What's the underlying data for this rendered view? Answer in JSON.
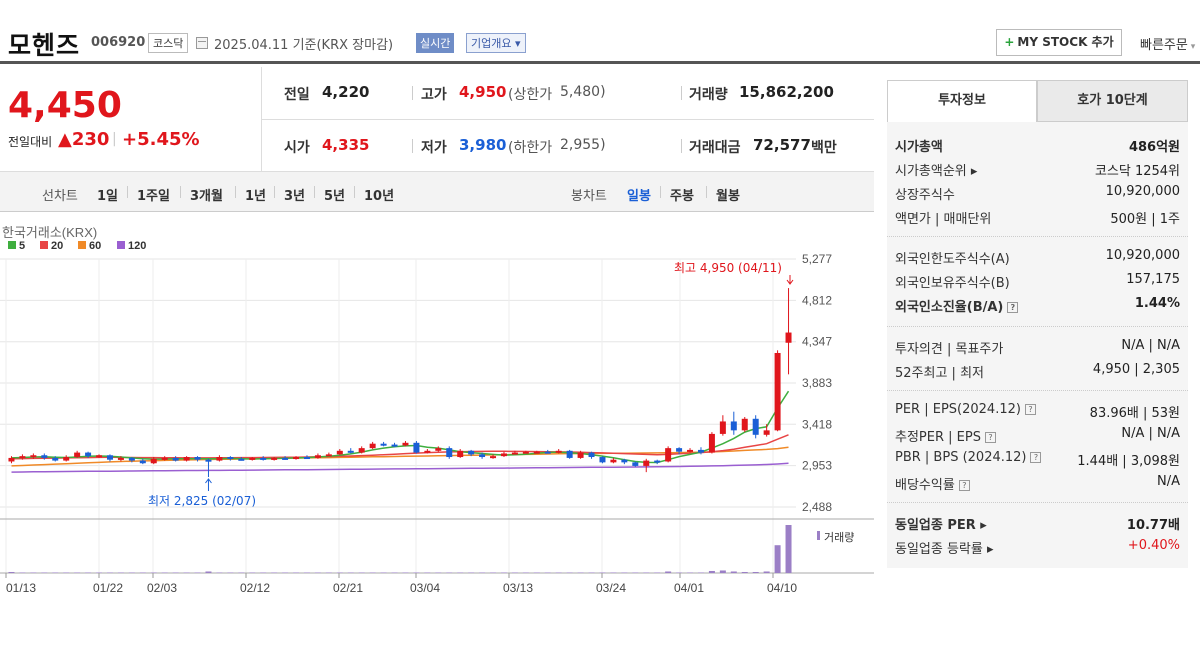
{
  "header": {
    "name": "모헨즈",
    "code": "006920",
    "market": "코스닥",
    "date_text": "2025.04.11  기준(KRX 장마감)",
    "realtime": "실시간",
    "company_info": "기업개요 ▾",
    "mystock": "MY STOCK 추가",
    "mystock_plus": "+",
    "quick_order": "빠른주문"
  },
  "price": {
    "current": "4,450",
    "prev_label": "전일대비",
    "change": "▲230",
    "change_pct": "+5.45%",
    "prev_close_label": "전일",
    "prev_close": "4,220",
    "high_label": "고가",
    "high": "4,950",
    "upper_label": "(상한가",
    "upper": "5,480)",
    "volume_label": "거래량",
    "volume": "15,862,200",
    "open_label": "시가",
    "open": "4,335",
    "low_label": "저가",
    "low": "3,980",
    "lower_label": "(하한가",
    "lower": "2,955)",
    "amount_label": "거래대금",
    "amount": "72,577",
    "amount_unit": "백만"
  },
  "tabs": {
    "line_label": "선차트",
    "line_items": [
      "1일",
      "1주일",
      "3개월",
      "1년",
      "3년",
      "5년",
      "10년"
    ],
    "candle_label": "봉차트",
    "candle_items": [
      "일봉",
      "주봉",
      "월봉"
    ]
  },
  "colors": {
    "up": "#e0161c",
    "down": "#1a5fd6",
    "ma5": "#3fae3f",
    "ma20": "#e84545",
    "ma60": "#f08a28",
    "ma120": "#9a5fd1",
    "volume": "#9b7fc6"
  },
  "chart_data": {
    "type": "candlestick",
    "source": "한국거래소(KRX)",
    "legend": [
      "5",
      "20",
      "60",
      "120"
    ],
    "y_ticks": [
      "5,277",
      "4,812",
      "4,347",
      "3,883",
      "3,418",
      "2,953",
      "2,488"
    ],
    "y_range": [
      2488,
      5277
    ],
    "x_ticks": [
      "01/13",
      "01/22",
      "02/03",
      "02/12",
      "02/21",
      "03/04",
      "03/13",
      "03/24",
      "04/01",
      "04/10"
    ],
    "high_annotation": "최고 4,950 (04/11)",
    "low_annotation": "최저 2,825 (02/07)",
    "volume_label": "거래량",
    "candles": [
      {
        "o": 3000,
        "c": 3040,
        "h": 3060,
        "l": 2980
      },
      {
        "o": 3040,
        "c": 3060,
        "h": 3080,
        "l": 3020
      },
      {
        "o": 3060,
        "c": 3070,
        "h": 3090,
        "l": 3030
      },
      {
        "o": 3070,
        "c": 3040,
        "h": 3090,
        "l": 3020
      },
      {
        "o": 3040,
        "c": 3010,
        "h": 3060,
        "l": 3000
      },
      {
        "o": 3010,
        "c": 3050,
        "h": 3070,
        "l": 3000
      },
      {
        "o": 3050,
        "c": 3100,
        "h": 3120,
        "l": 3040
      },
      {
        "o": 3100,
        "c": 3060,
        "h": 3110,
        "l": 3040
      },
      {
        "o": 3060,
        "c": 3070,
        "h": 3080,
        "l": 3040
      },
      {
        "o": 3070,
        "c": 3020,
        "h": 3080,
        "l": 3000
      },
      {
        "o": 3020,
        "c": 3040,
        "h": 3060,
        "l": 3000
      },
      {
        "o": 3040,
        "c": 3010,
        "h": 3050,
        "l": 2990
      },
      {
        "o": 3010,
        "c": 2980,
        "h": 3030,
        "l": 2970
      },
      {
        "o": 2980,
        "c": 3030,
        "h": 3050,
        "l": 2970
      },
      {
        "o": 3030,
        "c": 3040,
        "h": 3060,
        "l": 3010
      },
      {
        "o": 3040,
        "c": 3010,
        "h": 3060,
        "l": 3000
      },
      {
        "o": 3010,
        "c": 3050,
        "h": 3060,
        "l": 3000
      },
      {
        "o": 3050,
        "c": 3020,
        "h": 3060,
        "l": 3000
      },
      {
        "o": 3020,
        "c": 3010,
        "h": 3030,
        "l": 2825
      },
      {
        "o": 3010,
        "c": 3050,
        "h": 3070,
        "l": 3000
      },
      {
        "o": 3050,
        "c": 3030,
        "h": 3060,
        "l": 3010
      },
      {
        "o": 3030,
        "c": 3020,
        "h": 3050,
        "l": 3010
      },
      {
        "o": 3020,
        "c": 3040,
        "h": 3050,
        "l": 3010
      },
      {
        "o": 3040,
        "c": 3020,
        "h": 3060,
        "l": 3010
      },
      {
        "o": 3020,
        "c": 3040,
        "h": 3050,
        "l": 3010
      },
      {
        "o": 3040,
        "c": 3030,
        "h": 3060,
        "l": 3020
      },
      {
        "o": 3030,
        "c": 3050,
        "h": 3060,
        "l": 3020
      },
      {
        "o": 3050,
        "c": 3040,
        "h": 3070,
        "l": 3030
      },
      {
        "o": 3040,
        "c": 3070,
        "h": 3090,
        "l": 3030
      },
      {
        "o": 3070,
        "c": 3080,
        "h": 3100,
        "l": 3060
      },
      {
        "o": 3080,
        "c": 3120,
        "h": 3140,
        "l": 3070
      },
      {
        "o": 3120,
        "c": 3100,
        "h": 3150,
        "l": 3090
      },
      {
        "o": 3100,
        "c": 3150,
        "h": 3170,
        "l": 3090
      },
      {
        "o": 3150,
        "c": 3200,
        "h": 3220,
        "l": 3140
      },
      {
        "o": 3200,
        "c": 3190,
        "h": 3220,
        "l": 3170
      },
      {
        "o": 3190,
        "c": 3180,
        "h": 3210,
        "l": 3160
      },
      {
        "o": 3180,
        "c": 3210,
        "h": 3230,
        "l": 3170
      },
      {
        "o": 3210,
        "c": 3100,
        "h": 3230,
        "l": 3090
      },
      {
        "o": 3100,
        "c": 3120,
        "h": 3140,
        "l": 3090
      },
      {
        "o": 3120,
        "c": 3150,
        "h": 3170,
        "l": 3110
      },
      {
        "o": 3150,
        "c": 3050,
        "h": 3170,
        "l": 3030
      },
      {
        "o": 3050,
        "c": 3120,
        "h": 3140,
        "l": 3040
      },
      {
        "o": 3120,
        "c": 3080,
        "h": 3130,
        "l": 3060
      },
      {
        "o": 3080,
        "c": 3050,
        "h": 3100,
        "l": 3030
      },
      {
        "o": 3050,
        "c": 3060,
        "h": 3080,
        "l": 3030
      },
      {
        "o": 3060,
        "c": 3090,
        "h": 3110,
        "l": 3050
      },
      {
        "o": 3090,
        "c": 3100,
        "h": 3120,
        "l": 3080
      },
      {
        "o": 3100,
        "c": 3110,
        "h": 3120,
        "l": 3090
      },
      {
        "o": 3110,
        "c": 3110,
        "h": 3120,
        "l": 3090
      },
      {
        "o": 3110,
        "c": 3100,
        "h": 3130,
        "l": 3090
      },
      {
        "o": 3100,
        "c": 3120,
        "h": 3140,
        "l": 3090
      },
      {
        "o": 3120,
        "c": 3040,
        "h": 3130,
        "l": 3030
      },
      {
        "o": 3040,
        "c": 3100,
        "h": 3120,
        "l": 3030
      },
      {
        "o": 3100,
        "c": 3050,
        "h": 3110,
        "l": 3030
      },
      {
        "o": 3050,
        "c": 2990,
        "h": 3060,
        "l": 2980
      },
      {
        "o": 2990,
        "c": 3020,
        "h": 3040,
        "l": 2980
      },
      {
        "o": 3020,
        "c": 2990,
        "h": 3030,
        "l": 2970
      },
      {
        "o": 2990,
        "c": 2950,
        "h": 3000,
        "l": 2940
      },
      {
        "o": 2950,
        "c": 3010,
        "h": 3030,
        "l": 2880
      },
      {
        "o": 3010,
        "c": 3000,
        "h": 3020,
        "l": 2970
      },
      {
        "o": 3000,
        "c": 3150,
        "h": 3170,
        "l": 2990
      },
      {
        "o": 3150,
        "c": 3110,
        "h": 3160,
        "l": 3080
      },
      {
        "o": 3110,
        "c": 3130,
        "h": 3150,
        "l": 3100
      },
      {
        "o": 3130,
        "c": 3100,
        "h": 3160,
        "l": 3080
      },
      {
        "o": 3100,
        "c": 3310,
        "h": 3330,
        "l": 3090
      },
      {
        "o": 3310,
        "c": 3450,
        "h": 3520,
        "l": 3290
      },
      {
        "o": 3450,
        "c": 3350,
        "h": 3560,
        "l": 3300
      },
      {
        "o": 3350,
        "c": 3480,
        "h": 3500,
        "l": 3330
      },
      {
        "o": 3480,
        "c": 3300,
        "h": 3520,
        "l": 3260
      },
      {
        "o": 3300,
        "c": 3350,
        "h": 3420,
        "l": 3280
      },
      {
        "o": 3350,
        "c": 4220,
        "h": 4250,
        "l": 3340
      },
      {
        "o": 4335,
        "c": 4450,
        "h": 4950,
        "l": 3980
      }
    ],
    "ma5": [
      3040,
      3045,
      3050,
      3052,
      3048,
      3045,
      3050,
      3058,
      3062,
      3058,
      3050,
      3040,
      3030,
      3025,
      3028,
      3030,
      3030,
      3030,
      3030,
      3030,
      3035,
      3030,
      3028,
      3030,
      3033,
      3036,
      3040,
      3043,
      3050,
      3058,
      3070,
      3085,
      3105,
      3130,
      3150,
      3165,
      3175,
      3180,
      3160,
      3150,
      3130,
      3110,
      3100,
      3090,
      3080,
      3072,
      3075,
      3082,
      3093,
      3102,
      3105,
      3098,
      3090,
      3075,
      3060,
      3042,
      3020,
      3000,
      2990,
      2988,
      3020,
      3055,
      3080,
      3105,
      3150,
      3200,
      3260,
      3330,
      3370,
      3390,
      3600,
      3790
    ],
    "ma20": [
      3030,
      3032,
      3034,
      3036,
      3038,
      3040,
      3042,
      3044,
      3046,
      3047,
      3046,
      3045,
      3044,
      3043,
      3042,
      3041,
      3040,
      3040,
      3040,
      3041,
      3042,
      3043,
      3044,
      3045,
      3046,
      3047,
      3048,
      3050,
      3052,
      3055,
      3058,
      3062,
      3066,
      3071,
      3076,
      3082,
      3088,
      3094,
      3100,
      3104,
      3108,
      3110,
      3112,
      3113,
      3114,
      3114,
      3113,
      3112,
      3111,
      3110,
      3108,
      3106,
      3104,
      3100,
      3096,
      3092,
      3088,
      3084,
      3080,
      3076,
      3080,
      3086,
      3092,
      3100,
      3110,
      3122,
      3138,
      3160,
      3180,
      3200,
      3250,
      3300
    ],
    "ma60": [
      2950,
      2955,
      2960,
      2965,
      2970,
      2975,
      2980,
      2985,
      2990,
      2995,
      3000,
      3003,
      3006,
      3009,
      3012,
      3015,
      3018,
      3020,
      3022,
      3024,
      3026,
      3028,
      3030,
      3032,
      3034,
      3036,
      3038,
      3040,
      3042,
      3044,
      3046,
      3048,
      3050,
      3052,
      3054,
      3056,
      3058,
      3060,
      3062,
      3064,
      3066,
      3068,
      3070,
      3072,
      3074,
      3076,
      3078,
      3080,
      3082,
      3084,
      3086,
      3088,
      3089,
      3090,
      3091,
      3092,
      3093,
      3094,
      3095,
      3096,
      3098,
      3100,
      3102,
      3104,
      3108,
      3112,
      3118,
      3124,
      3130,
      3136,
      3145,
      3160
    ],
    "ma120": [
      2880,
      2882,
      2884,
      2885,
      2886,
      2887,
      2888,
      2889,
      2890,
      2891,
      2892,
      2893,
      2894,
      2895,
      2896,
      2897,
      2898,
      2899,
      2900,
      2900,
      2901,
      2902,
      2903,
      2904,
      2905,
      2906,
      2907,
      2908,
      2909,
      2910,
      2911,
      2912,
      2913,
      2914,
      2915,
      2916,
      2917,
      2918,
      2919,
      2920,
      2921,
      2922,
      2923,
      2924,
      2925,
      2926,
      2927,
      2928,
      2929,
      2930,
      2931,
      2932,
      2933,
      2934,
      2935,
      2936,
      2937,
      2938,
      2939,
      2940,
      2942,
      2944,
      2946,
      2948,
      2950,
      2953,
      2956,
      2959,
      2962,
      2966,
      2972,
      2980
    ],
    "volumes": [
      2,
      1,
      1,
      1,
      1,
      1,
      1,
      1,
      1,
      1,
      1,
      1,
      1,
      1,
      1,
      1,
      1,
      1,
      3,
      1,
      1,
      1,
      1,
      1,
      1,
      1,
      1,
      1,
      1,
      1,
      1,
      1,
      1,
      1,
      1,
      1,
      1,
      1,
      1,
      1,
      1,
      1,
      1,
      1,
      1,
      1,
      1,
      1,
      1,
      1,
      1,
      1,
      1,
      1,
      1,
      1,
      1,
      1,
      1,
      1,
      3,
      1,
      1,
      1,
      4,
      5,
      3,
      2,
      2,
      3,
      55,
      95
    ]
  },
  "right": {
    "tab_active": "투자정보",
    "tab_inactive": "호가 10단계",
    "rows1": [
      {
        "label": "시가총액",
        "value": "486억원",
        "bold": true
      },
      {
        "label": "시가총액순위 ▸",
        "value": "코스닥 1254위"
      },
      {
        "label": "상장주식수",
        "value": "10,920,000"
      },
      {
        "label": "액면가 | 매매단위",
        "value": "500원 | 1주"
      }
    ],
    "rows2": [
      {
        "label": "외국인한도주식수(A)",
        "value": "10,920,000"
      },
      {
        "label": "외국인보유주식수(B)",
        "value": "157,175"
      },
      {
        "label": "외국인소진율(B/A)",
        "value": "1.44%",
        "bold": true,
        "help": true
      }
    ],
    "rows3": [
      {
        "label": "투자의견 | 목표주가",
        "value": "N/A | N/A"
      },
      {
        "label": "52주최고 | 최저",
        "value": "4,950 | 2,305"
      }
    ],
    "rows4": [
      {
        "label": "PER | EPS(2024.12)",
        "value": "83.96배 | 53원",
        "help": true
      },
      {
        "label": "추정PER | EPS",
        "value": "N/A | N/A",
        "help": true
      },
      {
        "label": "PBR | BPS (2024.12)",
        "value": "1.44배 | 3,098원",
        "help": true
      },
      {
        "label": "배당수익률",
        "value": "N/A",
        "help": true
      }
    ],
    "rows5": [
      {
        "label": "동일업종 PER ▸",
        "value": "10.77배",
        "bold": true
      },
      {
        "label": "동일업종 등락률 ▸",
        "value": "+0.40%",
        "red": true
      }
    ]
  }
}
